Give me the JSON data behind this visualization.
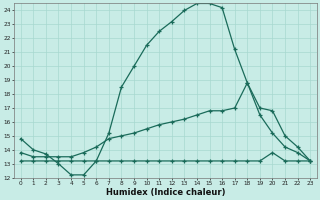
{
  "xlabel": "Humidex (Indice chaleur)",
  "bg_color": "#c8ece6",
  "line_color": "#1a6b5a",
  "grid_color": "#a8d8d0",
  "xlim": [
    -0.5,
    23.5
  ],
  "ylim": [
    12,
    24.5
  ],
  "yticks": [
    12,
    13,
    14,
    15,
    16,
    17,
    18,
    19,
    20,
    21,
    22,
    23,
    24
  ],
  "xticks": [
    0,
    1,
    2,
    3,
    4,
    5,
    6,
    7,
    8,
    9,
    10,
    11,
    12,
    13,
    14,
    15,
    16,
    17,
    18,
    19,
    20,
    21,
    22,
    23
  ],
  "line1_x": [
    0,
    1,
    2,
    3,
    4,
    5,
    6,
    7,
    8,
    9,
    10,
    11,
    12,
    13,
    14,
    15,
    16,
    17,
    18,
    19,
    20,
    21,
    22,
    23
  ],
  "line1_y": [
    14.8,
    14.0,
    13.7,
    13.0,
    12.2,
    12.2,
    13.2,
    15.2,
    18.5,
    20.0,
    21.5,
    22.5,
    23.2,
    24.0,
    24.5,
    24.5,
    24.2,
    21.2,
    18.8,
    17.0,
    16.8,
    15.0,
    14.2,
    13.2
  ],
  "line2_x": [
    0,
    1,
    2,
    3,
    4,
    5,
    6,
    7,
    8,
    9,
    10,
    11,
    12,
    13,
    14,
    15,
    16,
    17,
    18,
    19,
    20,
    21,
    22,
    23
  ],
  "line2_y": [
    13.8,
    13.5,
    13.5,
    13.5,
    13.5,
    13.8,
    14.2,
    14.8,
    15.0,
    15.2,
    15.5,
    15.8,
    16.0,
    16.2,
    16.5,
    16.8,
    16.8,
    17.0,
    18.8,
    16.5,
    15.2,
    14.2,
    13.8,
    13.2
  ],
  "line3_x": [
    0,
    1,
    2,
    3,
    4,
    5,
    6,
    7,
    8,
    9,
    10,
    11,
    12,
    13,
    14,
    15,
    16,
    17,
    18,
    19,
    20,
    21,
    22,
    23
  ],
  "line3_y": [
    13.2,
    13.2,
    13.2,
    13.2,
    13.2,
    13.2,
    13.2,
    13.2,
    13.2,
    13.2,
    13.2,
    13.2,
    13.2,
    13.2,
    13.2,
    13.2,
    13.2,
    13.2,
    13.2,
    13.2,
    13.8,
    13.2,
    13.2,
    13.2
  ]
}
